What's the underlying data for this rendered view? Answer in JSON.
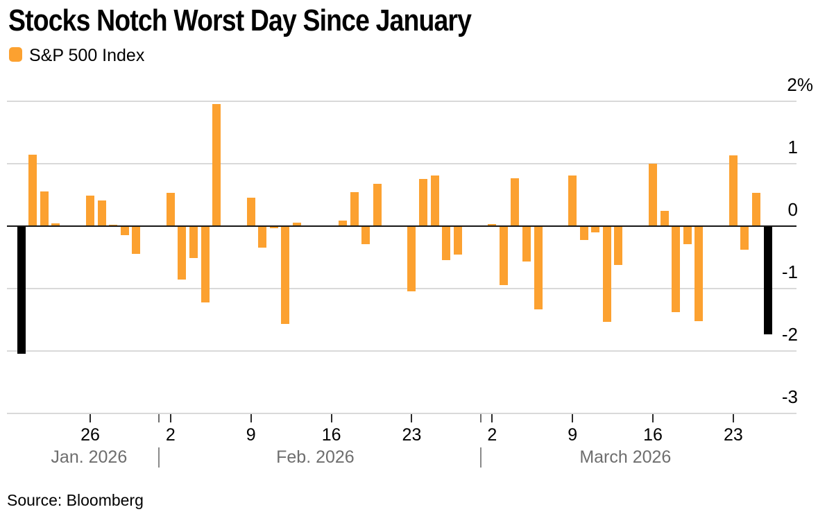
{
  "title": "Stocks Notch Worst Day Since January",
  "legend": {
    "label": "S&P 500 Index"
  },
  "source": "Source: Bloomberg",
  "colors": {
    "bar_orange": "#FCA130",
    "bar_highlight_black": "#000000",
    "grid": "#D9D9D9",
    "zero_line": "#161616",
    "month_text": "#6E6E6E"
  },
  "chart_data": {
    "type": "bar",
    "title": "Stocks Notch Worst Day Since January",
    "series_name": "S&P 500 Index",
    "unit": "percent daily change",
    "ylim": [
      -3,
      2
    ],
    "grid": true,
    "y_axis": {
      "side": "right",
      "labels": [
        {
          "text": "2%",
          "value": 2
        },
        {
          "text": "1",
          "value": 1
        },
        {
          "text": "0",
          "value": 0
        },
        {
          "text": "-1",
          "value": -1
        },
        {
          "text": "-2",
          "value": -2
        },
        {
          "text": "-3",
          "value": -3
        }
      ]
    },
    "x_axis": {
      "ticks": [
        {
          "label": "26",
          "day_offset": 6
        },
        {
          "label": "2",
          "day_offset": 13
        },
        {
          "label": "9",
          "day_offset": 20
        },
        {
          "label": "16",
          "day_offset": 27
        },
        {
          "label": "23",
          "day_offset": 34
        },
        {
          "label": "2",
          "day_offset": 41
        },
        {
          "label": "9",
          "day_offset": 48
        },
        {
          "label": "16",
          "day_offset": 55
        },
        {
          "label": "23",
          "day_offset": 62
        }
      ],
      "month_separators": [
        {
          "day_offset": 12
        },
        {
          "day_offset": 40
        }
      ],
      "months": [
        {
          "label": "Jan. 2026",
          "center_day_offset": 5.9
        },
        {
          "label": "Feb. 2026",
          "center_day_offset": 25.6
        },
        {
          "label": "March 2026",
          "center_day_offset": 52.6
        }
      ]
    },
    "points": [
      {
        "date": "Jan 20",
        "day_offset": 0,
        "value": -2.03,
        "highlight": true
      },
      {
        "date": "Jan 21",
        "day_offset": 1,
        "value": 1.15,
        "highlight": false
      },
      {
        "date": "Jan 22",
        "day_offset": 2,
        "value": 0.56,
        "highlight": false
      },
      {
        "date": "Jan 23",
        "day_offset": 3,
        "value": 0.05,
        "highlight": false
      },
      {
        "date": "Jan 26",
        "day_offset": 6,
        "value": 0.49,
        "highlight": false
      },
      {
        "date": "Jan 27",
        "day_offset": 7,
        "value": 0.41,
        "highlight": false
      },
      {
        "date": "Jan 28",
        "day_offset": 8,
        "value": 0.02,
        "highlight": false
      },
      {
        "date": "Jan 29",
        "day_offset": 9,
        "value": -0.13,
        "highlight": false
      },
      {
        "date": "Jan 30",
        "day_offset": 10,
        "value": -0.43,
        "highlight": false
      },
      {
        "date": "Feb 2",
        "day_offset": 13,
        "value": 0.53,
        "highlight": false
      },
      {
        "date": "Feb 3",
        "day_offset": 14,
        "value": -0.84,
        "highlight": false
      },
      {
        "date": "Feb 4",
        "day_offset": 15,
        "value": -0.5,
        "highlight": false
      },
      {
        "date": "Feb 5",
        "day_offset": 16,
        "value": -1.21,
        "highlight": false
      },
      {
        "date": "Feb 6",
        "day_offset": 17,
        "value": 1.96,
        "highlight": false
      },
      {
        "date": "Feb 9",
        "day_offset": 20,
        "value": 0.46,
        "highlight": false
      },
      {
        "date": "Feb 10",
        "day_offset": 21,
        "value": -0.33,
        "highlight": false
      },
      {
        "date": "Feb 11",
        "day_offset": 22,
        "value": -0.02,
        "highlight": false
      },
      {
        "date": "Feb 12",
        "day_offset": 23,
        "value": -1.55,
        "highlight": false
      },
      {
        "date": "Feb 13",
        "day_offset": 24,
        "value": 0.06,
        "highlight": false
      },
      {
        "date": "Feb 17",
        "day_offset": 28,
        "value": 0.09,
        "highlight": false
      },
      {
        "date": "Feb 18",
        "day_offset": 29,
        "value": 0.55,
        "highlight": false
      },
      {
        "date": "Feb 19",
        "day_offset": 30,
        "value": -0.28,
        "highlight": false
      },
      {
        "date": "Feb 20",
        "day_offset": 31,
        "value": 0.68,
        "highlight": false
      },
      {
        "date": "Feb 23",
        "day_offset": 34,
        "value": -1.03,
        "highlight": false
      },
      {
        "date": "Feb 24",
        "day_offset": 35,
        "value": 0.76,
        "highlight": false
      },
      {
        "date": "Feb 25",
        "day_offset": 36,
        "value": 0.81,
        "highlight": false
      },
      {
        "date": "Feb 26",
        "day_offset": 37,
        "value": -0.53,
        "highlight": false
      },
      {
        "date": "Feb 27",
        "day_offset": 38,
        "value": -0.44,
        "highlight": false
      },
      {
        "date": "Mar 2",
        "day_offset": 41,
        "value": 0.03,
        "highlight": false
      },
      {
        "date": "Mar 3",
        "day_offset": 42,
        "value": -0.93,
        "highlight": false
      },
      {
        "date": "Mar 4",
        "day_offset": 43,
        "value": 0.77,
        "highlight": false
      },
      {
        "date": "Mar 5",
        "day_offset": 44,
        "value": -0.56,
        "highlight": false
      },
      {
        "date": "Mar 6",
        "day_offset": 45,
        "value": -1.32,
        "highlight": false
      },
      {
        "date": "Mar 9",
        "day_offset": 48,
        "value": 0.81,
        "highlight": false
      },
      {
        "date": "Mar 10",
        "day_offset": 49,
        "value": -0.21,
        "highlight": false
      },
      {
        "date": "Mar 11",
        "day_offset": 50,
        "value": -0.09,
        "highlight": false
      },
      {
        "date": "Mar 12",
        "day_offset": 51,
        "value": -1.52,
        "highlight": false
      },
      {
        "date": "Mar 13",
        "day_offset": 52,
        "value": -0.61,
        "highlight": false
      },
      {
        "date": "Mar 16",
        "day_offset": 55,
        "value": 1.0,
        "highlight": false
      },
      {
        "date": "Mar 17",
        "day_offset": 56,
        "value": 0.24,
        "highlight": false
      },
      {
        "date": "Mar 18",
        "day_offset": 57,
        "value": -1.37,
        "highlight": false
      },
      {
        "date": "Mar 19",
        "day_offset": 58,
        "value": -0.28,
        "highlight": false
      },
      {
        "date": "Mar 20",
        "day_offset": 59,
        "value": -1.51,
        "highlight": false
      },
      {
        "date": "Mar 23",
        "day_offset": 62,
        "value": 1.13,
        "highlight": false
      },
      {
        "date": "Mar 24",
        "day_offset": 63,
        "value": -0.37,
        "highlight": false
      },
      {
        "date": "Mar 25",
        "day_offset": 64,
        "value": 0.53,
        "highlight": false
      },
      {
        "date": "Mar 26",
        "day_offset": 65,
        "value": -1.72,
        "highlight": true
      }
    ]
  }
}
